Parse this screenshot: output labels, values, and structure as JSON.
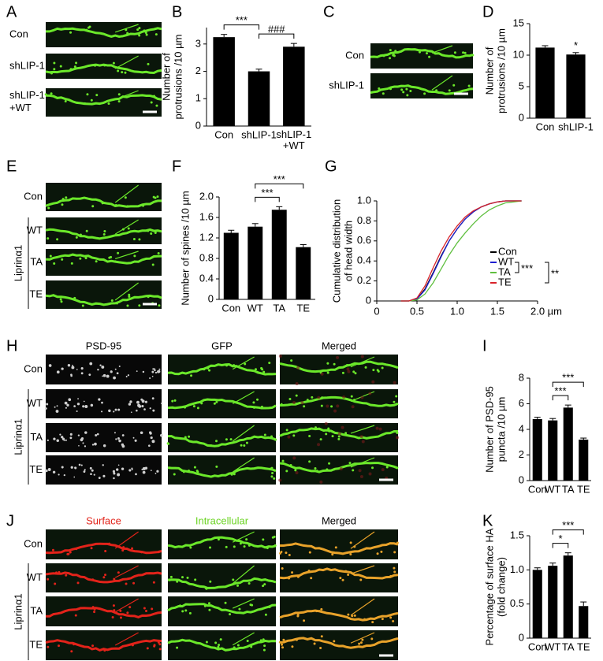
{
  "panels": [
    "A",
    "B",
    "C",
    "D",
    "E",
    "F",
    "G",
    "H",
    "I",
    "J",
    "K"
  ],
  "images": {
    "A": {
      "rows": [
        "Con",
        "shLIP-1",
        "shLIP-1\n+WT"
      ]
    },
    "C": {
      "rows": [
        "Con",
        "shLIP-1"
      ]
    },
    "E": {
      "rows": [
        "Con",
        "WT",
        "TA",
        "TE"
      ],
      "group": "Liprinα1"
    },
    "H": {
      "columns": [
        "PSD-95",
        "GFP",
        "Merged"
      ],
      "rows": [
        "Con",
        "WT",
        "TA",
        "TE"
      ],
      "group": "Liprinα1"
    },
    "J": {
      "columns": [
        "Surface",
        "Intracellular",
        "Merged"
      ],
      "rows": [
        "Con",
        "WT",
        "TA",
        "TE"
      ],
      "group": "Liprinα1"
    }
  },
  "chart_data": [
    {
      "type": "bar",
      "ylabel": "Number of\nprotrusions /10 µm",
      "categories": [
        "Con",
        "shLIP-1",
        "shLIP-1\n+WT"
      ],
      "values": [
        3.25,
        2.0,
        2.9
      ],
      "errors": [
        0.1,
        0.08,
        0.12
      ],
      "color": "#000000",
      "ylim": [
        0,
        3.6
      ],
      "yticks": [
        0,
        1,
        2,
        3
      ],
      "annotations": [
        {
          "text": "***",
          "from": 0,
          "to": 1
        },
        {
          "text": "###",
          "from": 1,
          "to": 2
        }
      ]
    },
    {
      "type": "bar",
      "ylabel": "Number of\nprotrusions /10 µm",
      "categories": [
        "Con",
        "shLIP-1"
      ],
      "values": [
        11.2,
        10.1
      ],
      "errors": [
        0.3,
        0.3
      ],
      "color": "#000000",
      "ylim": [
        0,
        15
      ],
      "yticks": [
        0,
        5,
        10,
        15
      ],
      "annotations": [
        {
          "text": "*",
          "at": 1
        }
      ]
    },
    {
      "type": "bar",
      "ylabel": "Number of spines /10 µm",
      "categories": [
        "Con",
        "WT",
        "TA",
        "TE"
      ],
      "values": [
        1.3,
        1.42,
        1.75,
        1.02
      ],
      "errors": [
        0.05,
        0.06,
        0.06,
        0.05
      ],
      "color": "#000000",
      "ylim": [
        0,
        2
      ],
      "yticks": [
        0,
        0.4,
        0.8,
        1.2,
        1.6,
        {
          "value": 2,
          "label": "2.0"
        }
      ],
      "annotations": [
        {
          "text": "***",
          "from": 1,
          "to": 2
        },
        {
          "text": "***",
          "from": 1,
          "to": 3
        }
      ]
    },
    {
      "type": "line",
      "ylabel": "Cumulative distribution\nof head width",
      "x": [
        0.3,
        0.4,
        0.5,
        0.6,
        0.7,
        0.8,
        0.9,
        1.0,
        1.1,
        1.2,
        1.3,
        1.4,
        1.5,
        1.6,
        1.7,
        1.8
      ],
      "series": [
        {
          "name": "Con",
          "color": "#000000",
          "values": [
            0,
            0,
            0.02,
            0.12,
            0.28,
            0.45,
            0.6,
            0.72,
            0.82,
            0.89,
            0.94,
            0.97,
            0.99,
            1,
            1,
            1
          ]
        },
        {
          "name": "WT",
          "color": "#1f1fd0",
          "values": [
            0,
            0,
            0.02,
            0.11,
            0.27,
            0.44,
            0.6,
            0.72,
            0.82,
            0.89,
            0.94,
            0.97,
            0.99,
            1,
            1,
            1
          ]
        },
        {
          "name": "TA",
          "color": "#5fbf3f",
          "values": [
            0,
            0,
            0.01,
            0.07,
            0.18,
            0.32,
            0.46,
            0.58,
            0.68,
            0.77,
            0.85,
            0.91,
            0.95,
            0.98,
            0.99,
            1
          ]
        },
        {
          "name": "TE",
          "color": "#d8232a",
          "values": [
            0,
            0,
            0.03,
            0.15,
            0.33,
            0.5,
            0.64,
            0.75,
            0.84,
            0.9,
            0.94,
            0.97,
            0.99,
            1,
            1,
            1
          ]
        }
      ],
      "xlim": [
        0,
        2
      ],
      "xticks": [
        0,
        0.5,
        {
          "value": 1,
          "label": "1.0"
        },
        1.5,
        {
          "value": 2,
          "label": "2.0 µm"
        }
      ],
      "ylim": [
        0,
        1
      ],
      "yticks": [
        0,
        0.2,
        0.4,
        0.6,
        0.8,
        {
          "value": 1,
          "label": "1.0"
        }
      ],
      "annotations": [
        {
          "text": "***",
          "from": 1,
          "to": 2
        },
        {
          "text": "**",
          "from": 1,
          "to": 3
        }
      ]
    },
    {
      "type": "bar",
      "ylabel": "Number of PSD-95\npuncta /10 µm",
      "categories": [
        "Con",
        "WT",
        "TA",
        "TE"
      ],
      "values": [
        4.8,
        4.7,
        5.7,
        3.2
      ],
      "errors": [
        0.15,
        0.15,
        0.2,
        0.12
      ],
      "color": "#000000",
      "ylim": [
        0,
        8
      ],
      "yticks": [
        0,
        2,
        4,
        6,
        8
      ],
      "annotations": [
        {
          "text": "***",
          "from": 1,
          "to": 2
        },
        {
          "text": "***",
          "from": 1,
          "to": 3
        }
      ]
    },
    {
      "type": "bar",
      "ylabel": "Percentage of surface HA\n(fold change)",
      "categories": [
        "Con",
        "WT",
        "TA",
        "TE"
      ],
      "values": [
        1.0,
        1.06,
        1.21,
        0.47
      ],
      "errors": [
        0.03,
        0.04,
        0.04,
        0.06
      ],
      "color": "#000000",
      "ylim": [
        0,
        1.5
      ],
      "yticks": [
        0,
        0.5,
        {
          "value": 1,
          "label": "1.0"
        },
        1.5
      ],
      "annotations": [
        {
          "text": "*",
          "from": 1,
          "to": 2
        },
        {
          "text": "***",
          "from": 1,
          "to": 3
        }
      ]
    }
  ]
}
